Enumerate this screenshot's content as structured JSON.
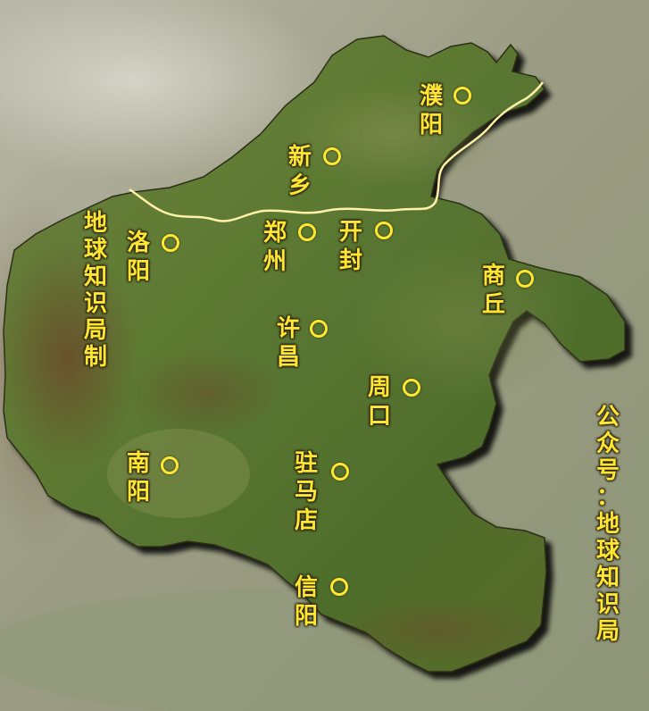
{
  "map": {
    "colors": {
      "label": "#ffe632",
      "river": "#fff2a8",
      "province_fill": "#5f7a35",
      "surroundings": "#9a9a86"
    },
    "cities": [
      {
        "id": "puyang",
        "chars": [
          "濮",
          "阳"
        ]
      },
      {
        "id": "xinxiang",
        "chars": [
          "新",
          "乡"
        ]
      },
      {
        "id": "luoyang",
        "chars": [
          "洛",
          "阳"
        ]
      },
      {
        "id": "zhengzhou",
        "chars": [
          "郑",
          "州"
        ]
      },
      {
        "id": "kaifeng",
        "chars": [
          "开",
          "封"
        ]
      },
      {
        "id": "shangqiu",
        "chars": [
          "商",
          "丘"
        ]
      },
      {
        "id": "xuchang",
        "chars": [
          "许",
          "昌"
        ]
      },
      {
        "id": "zhoukou",
        "chars": [
          "周",
          "口"
        ]
      },
      {
        "id": "nanyang",
        "chars": [
          "南",
          "阳"
        ]
      },
      {
        "id": "zhumadian",
        "chars": [
          "驻",
          "马",
          "店"
        ]
      },
      {
        "id": "xinyang",
        "chars": [
          "信",
          "阳"
        ]
      }
    ],
    "watermark_left": [
      "地",
      "球",
      "知",
      "识",
      "局",
      "制"
    ],
    "watermark_right": [
      "公",
      "众",
      "号",
      "：",
      "地",
      "球",
      "知",
      "识",
      "局"
    ]
  }
}
